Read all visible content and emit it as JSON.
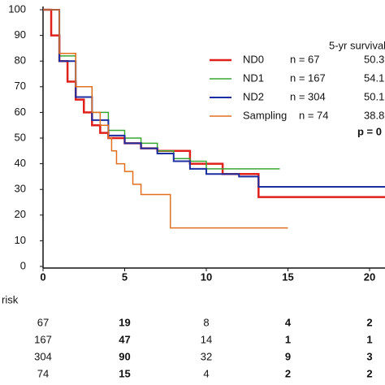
{
  "chart_data": {
    "type": "step",
    "xlim": [
      0,
      21
    ],
    "ylim": [
      0,
      100
    ],
    "xticks": [
      0,
      5,
      10,
      15,
      20
    ],
    "yticks": [
      0,
      10,
      20,
      30,
      40,
      50,
      60,
      70,
      80,
      90,
      100
    ],
    "legend_title": "5-yr survival",
    "p_value": "p = 0",
    "series": [
      {
        "name": "ND0",
        "n_label": "n = 67",
        "five_yr": 50.3,
        "color": "#e0201b",
        "width": 2.5,
        "x": [
          0,
          0.5,
          1,
          1.5,
          2,
          2.5,
          3,
          3.5,
          4,
          5,
          6,
          7,
          9,
          11,
          13.2,
          21
        ],
        "values": [
          100,
          90,
          80,
          72,
          65,
          60,
          55,
          52,
          50,
          48,
          46,
          45,
          40,
          36,
          27,
          27
        ]
      },
      {
        "name": "ND1",
        "n_label": "n = 167",
        "five_yr": 54.1,
        "color": "#3aa635",
        "width": 1.5,
        "x": [
          0,
          1,
          2,
          3,
          4,
          5,
          6,
          7,
          8,
          9,
          10,
          14.5
        ],
        "values": [
          100,
          82,
          70,
          60,
          53,
          50,
          48,
          45,
          42,
          41,
          38,
          38
        ]
      },
      {
        "name": "ND2",
        "n_label": "n = 304",
        "five_yr": 50.1,
        "color": "#1c2ea0",
        "width": 2,
        "x": [
          0,
          1,
          2,
          3,
          4,
          5,
          6,
          7,
          8,
          9,
          10,
          12,
          13.2,
          21
        ],
        "values": [
          100,
          80,
          66,
          57,
          51,
          48,
          46,
          44,
          41,
          38,
          36,
          35,
          31,
          31
        ]
      },
      {
        "name": "Sampling",
        "n_label": "n = 74",
        "five_yr": 38.8,
        "color": "#e07020",
        "width": 1.5,
        "x": [
          0,
          1,
          2,
          3,
          3.5,
          4,
          4.2,
          4.5,
          5,
          5.5,
          6,
          7.8,
          15
        ],
        "values": [
          100,
          83,
          70,
          60,
          55,
          50,
          45,
          40,
          37,
          32,
          28,
          15,
          15
        ]
      }
    ],
    "risk_table": {
      "label": "risk",
      "rows": [
        [
          67,
          19,
          8,
          4,
          2
        ],
        [
          167,
          47,
          14,
          1,
          1
        ],
        [
          304,
          90,
          32,
          9,
          3
        ],
        [
          74,
          15,
          4,
          2,
          2
        ]
      ]
    }
  }
}
